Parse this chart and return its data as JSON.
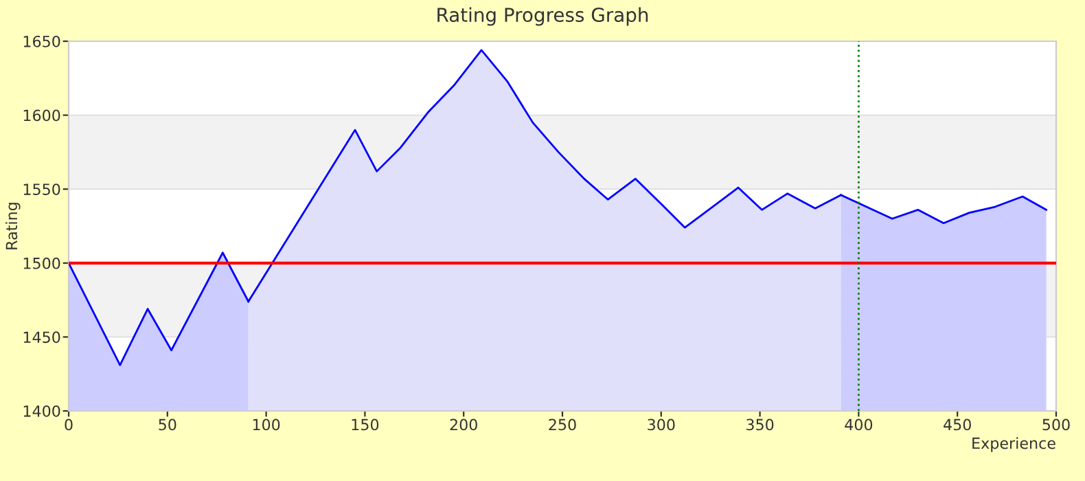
{
  "chart_data": {
    "type": "area",
    "title": "Rating Progress Graph",
    "xlabel": "Experience",
    "ylabel": "Rating",
    "series": [
      {
        "color": "#ccccff",
        "x": [
          0,
          26,
          40,
          52,
          78,
          91
        ],
        "values": [
          1500,
          1431,
          1469,
          1441,
          1507,
          1474
        ]
      },
      {
        "color": "#e0e0fa",
        "x": [
          91,
          145,
          156,
          168,
          182,
          195,
          209,
          222,
          235,
          248,
          261,
          273,
          287,
          300,
          312,
          326,
          339,
          351,
          364,
          378,
          391
        ],
        "values": [
          1474,
          1590,
          1562,
          1578,
          1602,
          1620,
          1644,
          1623,
          1595,
          1575,
          1557,
          1543,
          1557,
          1540,
          1524,
          1538,
          1551,
          1536,
          1547,
          1537,
          1546
        ]
      },
      {
        "color": "#ccccff",
        "x": [
          391,
          404,
          417,
          430,
          443,
          456,
          469,
          483,
          495
        ],
        "values": [
          1546,
          1538,
          1530,
          1536,
          1527,
          1534,
          1538,
          1545,
          1536
        ]
      }
    ],
    "xlim": [
      0,
      500
    ],
    "xticks": [
      0,
      50,
      100,
      150,
      200,
      250,
      300,
      350,
      400,
      450,
      500
    ],
    "ylim": [
      1400,
      1650
    ],
    "yticks": [
      1400,
      1450,
      1500,
      1550,
      1600,
      1650
    ],
    "ref_lines": [
      {
        "axis": "y",
        "value": 1500,
        "color": "#ff0000",
        "line_style": "solid"
      },
      {
        "axis": "x",
        "value": 400,
        "color": "#008000",
        "line_style": "dotted"
      }
    ],
    "bands": [
      {
        "axis": "y",
        "from": 1450,
        "to": 1500,
        "color": "#f2f2f2"
      },
      {
        "axis": "y",
        "from": 1550,
        "to": 1600,
        "color": "#f2f2f2"
      }
    ],
    "grid": "y"
  }
}
